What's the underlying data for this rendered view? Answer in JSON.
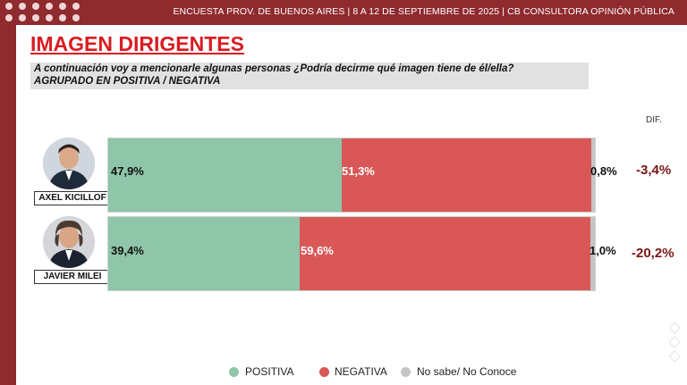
{
  "header": {
    "info": "ENCUESTA PROV. DE BUENOS AIRES | 8 A 12 DE SEPTIEMBRE DE 2025 | CB CONSULTORA OPINIÓN PÚBLICA"
  },
  "title": "IMAGEN DIRIGENTES",
  "question": {
    "line1": "A continuación voy a mencionarle algunas personas  ¿Podría decirme qué imagen tiene de él/ella?",
    "line2": "AGRUPADO EN POSITIVA / NEGATIVA"
  },
  "colors": {
    "brand": "#8f2a2e",
    "title": "#d91c22",
    "positiva": "#8fc5a8",
    "negativa": "#da5757",
    "nosabe": "#c4c4c4",
    "dif": "#7d1515"
  },
  "chart_data": {
    "type": "bar",
    "orientation": "horizontal",
    "stacked": true,
    "title": "IMAGEN DIRIGENTES",
    "dif_header": "DIF.",
    "categories": [
      "AXEL KICILLOF",
      "JAVIER MILEI"
    ],
    "series": [
      {
        "name": "POSITIVA",
        "values": [
          47.9,
          39.4
        ],
        "labels": [
          "47,9%",
          "39,4%"
        ]
      },
      {
        "name": "NEGATIVA",
        "values": [
          51.3,
          59.6
        ],
        "labels": [
          "51,3%",
          "59,6%"
        ]
      },
      {
        "name": "No sabe/ No Conoce",
        "values": [
          0.8,
          1.0
        ],
        "labels": [
          "0,8%",
          "1,0%"
        ]
      }
    ],
    "dif": [
      -3.4,
      -20.2
    ],
    "dif_labels": [
      "-3,4%",
      "-20,2%"
    ],
    "xlim": [
      0,
      100
    ],
    "legend_position": "bottom"
  }
}
